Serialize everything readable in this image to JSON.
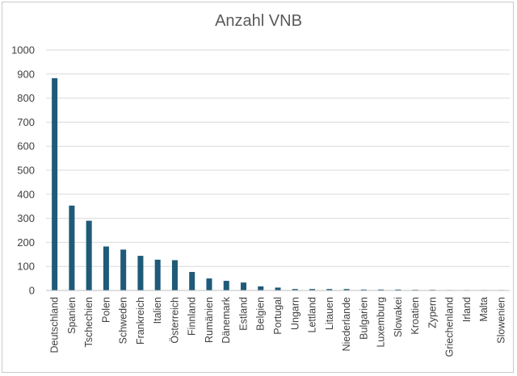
{
  "chart_data": {
    "type": "bar",
    "title": "Anzahl VNB",
    "xlabel": "",
    "ylabel": "",
    "ylim": [
      0,
      1000
    ],
    "yticks": [
      0,
      100,
      200,
      300,
      400,
      500,
      600,
      700,
      800,
      900,
      1000
    ],
    "grid": true,
    "legend": "none",
    "bar_color": "#1f5a78",
    "categories": [
      "Deutschland",
      "Spanien",
      "Tschechien",
      "Polen",
      "Schweden",
      "Frankreich",
      "Italien",
      "Österreich",
      "Finnland",
      "Rumänien",
      "Dänemark",
      "Estland",
      "Belgien",
      "Portugal",
      "Ungarn",
      "Lettland",
      "Litauen",
      "Niederlande",
      "Bulgarien",
      "Luxemburg",
      "Slowakei",
      "Kroatien",
      "Zypern",
      "Griechenland",
      "Irland",
      "Malta",
      "Slowenien"
    ],
    "values": [
      883,
      353,
      290,
      183,
      170,
      144,
      128,
      126,
      77,
      50,
      40,
      33,
      17,
      12,
      6,
      6,
      6,
      6,
      4,
      4,
      4,
      3,
      3,
      2,
      2,
      2,
      2
    ]
  }
}
